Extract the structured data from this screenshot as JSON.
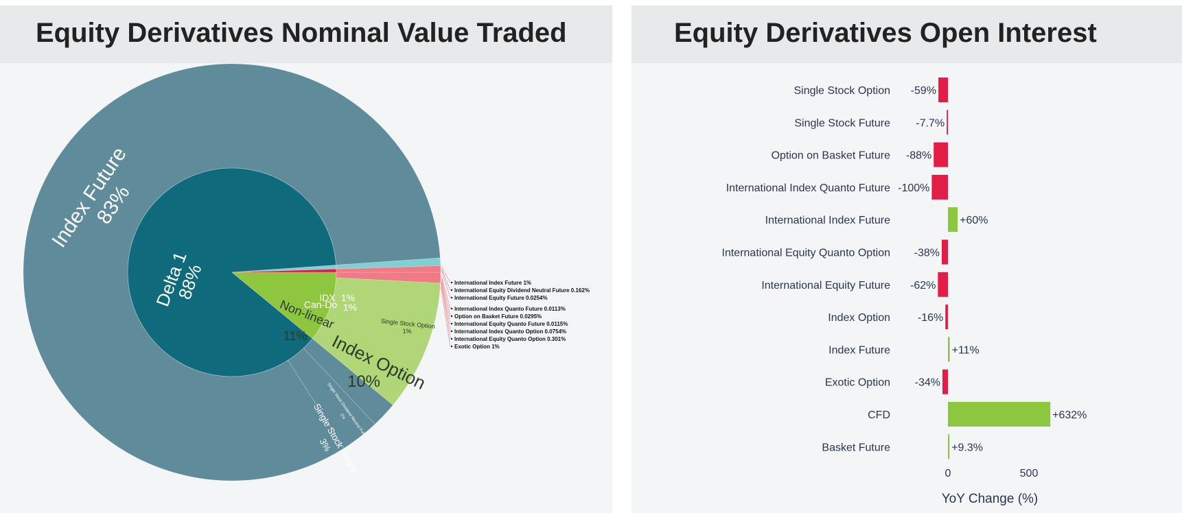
{
  "left_panel": {
    "title": "Equity Derivatives Nominal Value Traded"
  },
  "right_panel": {
    "title": "Equity Derivatives Open Interest"
  },
  "colors": {
    "delta1": "#0f6b7b",
    "index_future": "#5f8b9a",
    "non_linear": "#8ec63f",
    "index_option": "#b0d677",
    "idx": "#7fcfd3",
    "can_do": "#e11d48",
    "can_do_children": "#f07b86",
    "negative": "#e11d48",
    "positive": "#8dc63f"
  },
  "chart_data": [
    {
      "type": "sunburst",
      "inner": [
        {
          "label": "Delta 1",
          "pct_text": "88%",
          "value": 88,
          "color": "#0f6b7b"
        },
        {
          "label": "Non-linear",
          "pct_text": "11%",
          "value": 11,
          "color": "#8ec63f"
        },
        {
          "label": "IDX",
          "pct_text": "1%",
          "value": 0.6,
          "color": "#7fcfd3"
        },
        {
          "label": "Can-Do",
          "pct_text": "1%",
          "value": 0.5,
          "color": "#e11d48"
        }
      ],
      "outer_labels": [
        {
          "label": "Index Future",
          "pct_text": "83%"
        },
        {
          "label": "Index Option",
          "pct_text": "10%"
        },
        {
          "label": "Single Stock Future",
          "pct_text": "3%"
        },
        {
          "label": "Single Stock Dividend Neutral Future",
          "pct_text": "2%"
        },
        {
          "label": "Single Stock Option",
          "pct_text": "1%"
        }
      ],
      "callouts": [
        "International Index Future 1%",
        "International Equity Dividend Neutral Future 0.162%",
        "International Equity Future 0.0254%",
        "International Index Quanto Future 0.0113%",
        "Option on Basket Future 0.0295%",
        "International Equity Quanto Future 0.0115%",
        "International Index Quanto Option 0.0754%",
        "International Equity Quanto Option 0.301%",
        "Exotic Option 1%"
      ]
    },
    {
      "type": "bar",
      "orientation": "horizontal",
      "categories": [
        "Single Stock Option",
        "Single Stock Future",
        "Option on Basket Future",
        "International Index Quanto Future",
        "International Index Future",
        "International Equity Quanto Option",
        "International Equity Future",
        "Index Option",
        "Index Future",
        "Exotic Option",
        "CFD",
        "Basket Future"
      ],
      "values": [
        -59,
        -7.7,
        -88,
        -100,
        60,
        -38,
        -62,
        -16,
        11,
        -34,
        632,
        9.3
      ],
      "value_labels": [
        "-59%",
        "-7.7%",
        "-88%",
        "-100%",
        "+60%",
        "-38%",
        "-62%",
        "-16%",
        "+11%",
        "-34%",
        "+632%",
        "+9.3%"
      ],
      "xlabel": "YoY Change (%)",
      "x_ticks": [
        0,
        500
      ],
      "x_tick_labels": [
        "0",
        "500"
      ],
      "xlim": [
        -100,
        632
      ]
    }
  ]
}
